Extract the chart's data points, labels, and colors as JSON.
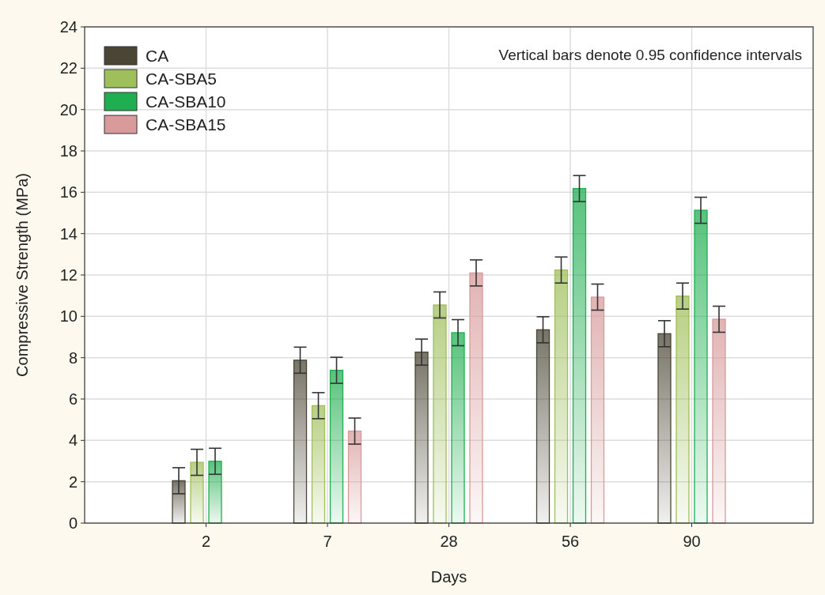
{
  "chart_data": {
    "type": "bar",
    "xlabel": "Days",
    "ylabel": "Compressive Strength (MPa)",
    "categories": [
      "2",
      "7",
      "28",
      "56",
      "90"
    ],
    "series": [
      {
        "name": "CA",
        "color": "#4a4535",
        "values": [
          2.05,
          7.88,
          8.27,
          9.35,
          9.16
        ],
        "errors": [
          0.63,
          0.63,
          0.63,
          0.63,
          0.63
        ]
      },
      {
        "name": "CA-SBA5",
        "color": "#9fbf5a",
        "values": [
          2.94,
          5.68,
          10.55,
          12.24,
          10.98
        ],
        "errors": [
          0.63,
          0.63,
          0.63,
          0.63,
          0.63
        ]
      },
      {
        "name": "CA-SBA10",
        "color": "#1fae50",
        "values": [
          2.99,
          7.39,
          9.21,
          16.18,
          15.13
        ],
        "errors": [
          0.63,
          0.63,
          0.63,
          0.63,
          0.63
        ]
      },
      {
        "name": "CA-SBA15",
        "color": "#d89a9a",
        "values": [
          null,
          4.45,
          12.1,
          10.93,
          9.86
        ],
        "errors": [
          null,
          0.63,
          0.63,
          0.63,
          0.63
        ]
      }
    ],
    "ylim": [
      0,
      24
    ],
    "yticks": [
      0,
      2,
      4,
      6,
      8,
      10,
      12,
      14,
      16,
      18,
      20,
      22,
      24
    ],
    "grid": true,
    "legend": "top left",
    "annotations": [
      "Vertical bars denote 0.95 confidence intervals"
    ]
  }
}
